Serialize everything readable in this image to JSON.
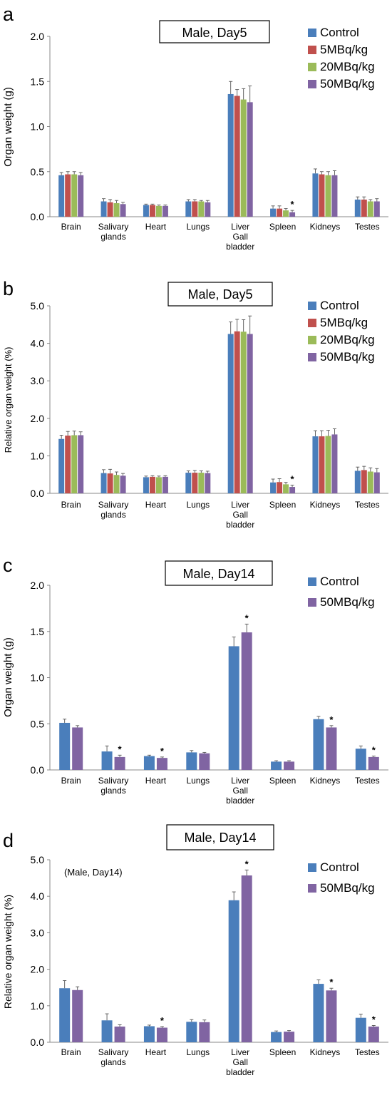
{
  "chart_data": [
    {
      "type": "bar",
      "panel_label": "a",
      "title": "Male, Day5",
      "ylabel": "Organ weight (g)",
      "xlabel": "",
      "ylim": [
        0,
        2.0
      ],
      "yticks": [
        "0.0",
        "0.5",
        "1.0",
        "1.5",
        "2.0"
      ],
      "ytick_values": [
        0,
        0.5,
        1.0,
        1.5,
        2.0
      ],
      "categories": [
        [
          "Brain"
        ],
        [
          "Salivary",
          "glands"
        ],
        [
          "Heart"
        ],
        [
          "Lungs"
        ],
        [
          "Liver",
          "Gall",
          "bladder"
        ],
        [
          "Spleen"
        ],
        [
          "Kidneys"
        ],
        [
          "Testes"
        ]
      ],
      "series": [
        {
          "name": "Control",
          "color": "#4a7ebb",
          "values": [
            0.46,
            0.17,
            0.13,
            0.17,
            1.36,
            0.09,
            0.48,
            0.19
          ],
          "errors": [
            0.03,
            0.03,
            0.01,
            0.02,
            0.14,
            0.03,
            0.05,
            0.03
          ]
        },
        {
          "name": "5MBq/kg",
          "color": "#c0504d",
          "values": [
            0.47,
            0.16,
            0.13,
            0.17,
            1.34,
            0.09,
            0.47,
            0.19
          ],
          "errors": [
            0.03,
            0.03,
            0.01,
            0.02,
            0.07,
            0.03,
            0.03,
            0.03
          ]
        },
        {
          "name": "20MBq/kg",
          "color": "#9bbb59",
          "values": [
            0.47,
            0.15,
            0.12,
            0.17,
            1.3,
            0.07,
            0.46,
            0.17
          ],
          "errors": [
            0.03,
            0.03,
            0.01,
            0.01,
            0.12,
            0.02,
            0.04,
            0.02
          ]
        },
        {
          "name": "50MBq/kg",
          "color": "#8064a2",
          "values": [
            0.46,
            0.14,
            0.12,
            0.16,
            1.27,
            0.05,
            0.46,
            0.17
          ],
          "errors": [
            0.03,
            0.02,
            0.01,
            0.02,
            0.18,
            0.02,
            0.05,
            0.03
          ]
        }
      ],
      "significance": [
        {
          "series": 3,
          "category": 5,
          "label": "*"
        }
      ],
      "note": "",
      "legend": "top-right",
      "grid": false
    },
    {
      "type": "bar",
      "panel_label": "b",
      "title": "Male, Day5",
      "ylabel": "Relative organ weight (%)",
      "xlabel": "",
      "ylim": [
        0,
        5.0
      ],
      "yticks": [
        "0.0",
        "1.0",
        "2.0",
        "3.0",
        "4.0",
        "5.0"
      ],
      "ytick_values": [
        0,
        1.0,
        2.0,
        3.0,
        4.0,
        5.0
      ],
      "categories": [
        [
          "Brain"
        ],
        [
          "Salivary",
          "glands"
        ],
        [
          "Heart"
        ],
        [
          "Lungs"
        ],
        [
          "Liver",
          "Gall",
          "bladder"
        ],
        [
          "Spleen"
        ],
        [
          "Kidneys"
        ],
        [
          "Testes"
        ]
      ],
      "series": [
        {
          "name": "Control",
          "color": "#4a7ebb",
          "values": [
            1.45,
            0.54,
            0.43,
            0.55,
            4.25,
            0.29,
            1.52,
            0.6
          ],
          "errors": [
            0.1,
            0.09,
            0.03,
            0.05,
            0.32,
            0.09,
            0.15,
            0.1
          ]
        },
        {
          "name": "5MBq/kg",
          "color": "#c0504d",
          "values": [
            1.54,
            0.53,
            0.44,
            0.55,
            4.32,
            0.3,
            1.52,
            0.62
          ],
          "errors": [
            0.11,
            0.11,
            0.03,
            0.06,
            0.32,
            0.09,
            0.15,
            0.1
          ]
        },
        {
          "name": "20MBq/kg",
          "color": "#9bbb59",
          "values": [
            1.55,
            0.49,
            0.43,
            0.55,
            4.31,
            0.24,
            1.53,
            0.58
          ],
          "errors": [
            0.11,
            0.08,
            0.03,
            0.05,
            0.32,
            0.05,
            0.15,
            0.1
          ]
        },
        {
          "name": "50MBq/kg",
          "color": "#8064a2",
          "values": [
            1.55,
            0.47,
            0.44,
            0.54,
            4.25,
            0.17,
            1.57,
            0.56
          ],
          "errors": [
            0.09,
            0.06,
            0.03,
            0.05,
            0.48,
            0.05,
            0.15,
            0.1
          ]
        }
      ],
      "significance": [
        {
          "series": 3,
          "category": 5,
          "label": "*"
        }
      ],
      "note": "",
      "legend": "top-right",
      "grid": false
    },
    {
      "type": "bar",
      "panel_label": "c",
      "title": "Male, Day14",
      "ylabel": "Organ weight (g)",
      "xlabel": "",
      "ylim": [
        0,
        2.0
      ],
      "yticks": [
        "0.0",
        "0.5",
        "1.0",
        "1.5",
        "2.0"
      ],
      "ytick_values": [
        0,
        0.5,
        1.0,
        1.5,
        2.0
      ],
      "categories": [
        [
          "Brain"
        ],
        [
          "Salivary",
          "glands"
        ],
        [
          "Heart"
        ],
        [
          "Lungs"
        ],
        [
          "Liver",
          "Gall",
          "bladder"
        ],
        [
          "Spleen"
        ],
        [
          "Kidneys"
        ],
        [
          "Testes"
        ]
      ],
      "series": [
        {
          "name": "Control",
          "color": "#4a7ebb",
          "values": [
            0.51,
            0.2,
            0.15,
            0.19,
            1.34,
            0.09,
            0.55,
            0.23
          ],
          "errors": [
            0.04,
            0.06,
            0.01,
            0.02,
            0.1,
            0.01,
            0.03,
            0.03
          ]
        },
        {
          "name": "50MBq/kg",
          "color": "#8064a2",
          "values": [
            0.46,
            0.14,
            0.13,
            0.18,
            1.49,
            0.09,
            0.46,
            0.14
          ],
          "errors": [
            0.02,
            0.02,
            0.01,
            0.01,
            0.09,
            0.01,
            0.02,
            0.01
          ]
        }
      ],
      "significance": [
        {
          "series": 1,
          "category": 1,
          "label": "*"
        },
        {
          "series": 1,
          "category": 2,
          "label": "*"
        },
        {
          "series": 1,
          "category": 4,
          "label": "*"
        },
        {
          "series": 1,
          "category": 6,
          "label": "*"
        },
        {
          "series": 1,
          "category": 7,
          "label": "*"
        }
      ],
      "note": "",
      "legend": "top-right",
      "grid": false
    },
    {
      "type": "bar",
      "panel_label": "d",
      "title": "Male, Day14",
      "ylabel": "Relative organ weight (%)",
      "xlabel": "",
      "ylim": [
        0,
        5.0
      ],
      "yticks": [
        "0.0",
        "1.0",
        "2.0",
        "3.0",
        "4.0",
        "5.0"
      ],
      "ytick_values": [
        0,
        1.0,
        2.0,
        3.0,
        4.0,
        5.0
      ],
      "categories": [
        [
          "Brain"
        ],
        [
          "Salivary",
          "glands"
        ],
        [
          "Heart"
        ],
        [
          "Lungs"
        ],
        [
          "Liver",
          "Gall",
          "bladder"
        ],
        [
          "Spleen"
        ],
        [
          "Kidneys"
        ],
        [
          "Testes"
        ]
      ],
      "series": [
        {
          "name": "Control",
          "color": "#4a7ebb",
          "values": [
            1.48,
            0.6,
            0.44,
            0.56,
            3.89,
            0.28,
            1.6,
            0.67
          ],
          "errors": [
            0.21,
            0.18,
            0.03,
            0.06,
            0.23,
            0.03,
            0.11,
            0.1
          ]
        },
        {
          "name": "50MBq/kg",
          "color": "#8064a2",
          "values": [
            1.43,
            0.43,
            0.4,
            0.55,
            4.57,
            0.29,
            1.42,
            0.43
          ],
          "errors": [
            0.09,
            0.05,
            0.03,
            0.06,
            0.15,
            0.03,
            0.06,
            0.03
          ]
        }
      ],
      "significance": [
        {
          "series": 1,
          "category": 2,
          "label": "*"
        },
        {
          "series": 1,
          "category": 4,
          "label": "*"
        },
        {
          "series": 1,
          "category": 6,
          "label": "*"
        },
        {
          "series": 1,
          "category": 7,
          "label": "*"
        }
      ],
      "note": "(Male, Day14)",
      "legend": "top-right",
      "grid": false
    }
  ]
}
